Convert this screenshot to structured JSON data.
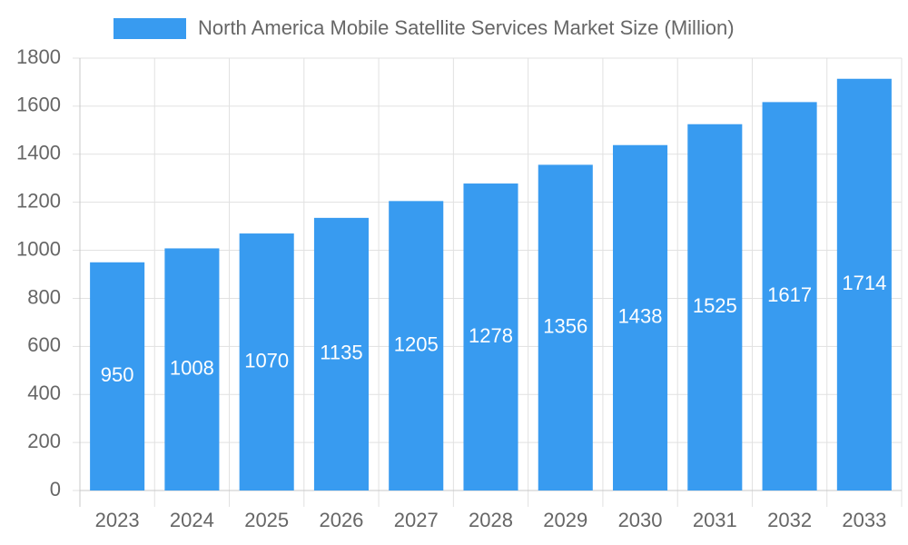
{
  "chart_data": {
    "type": "bar",
    "categories": [
      "2023",
      "2024",
      "2025",
      "2026",
      "2027",
      "2028",
      "2029",
      "2030",
      "2031",
      "2032",
      "2033"
    ],
    "series": [
      {
        "name": "North America Mobile Satellite Services Market Size (Million)",
        "color": "#389bf0",
        "values": [
          950,
          1008,
          1070,
          1135,
          1205,
          1278,
          1356,
          1438,
          1525,
          1617,
          1714
        ]
      }
    ],
    "ylim": [
      0,
      1800
    ],
    "yticks": [
      0,
      200,
      400,
      600,
      800,
      1000,
      1200,
      1400,
      1600,
      1800
    ],
    "grid": true,
    "data_label_color": "#ffffff"
  }
}
